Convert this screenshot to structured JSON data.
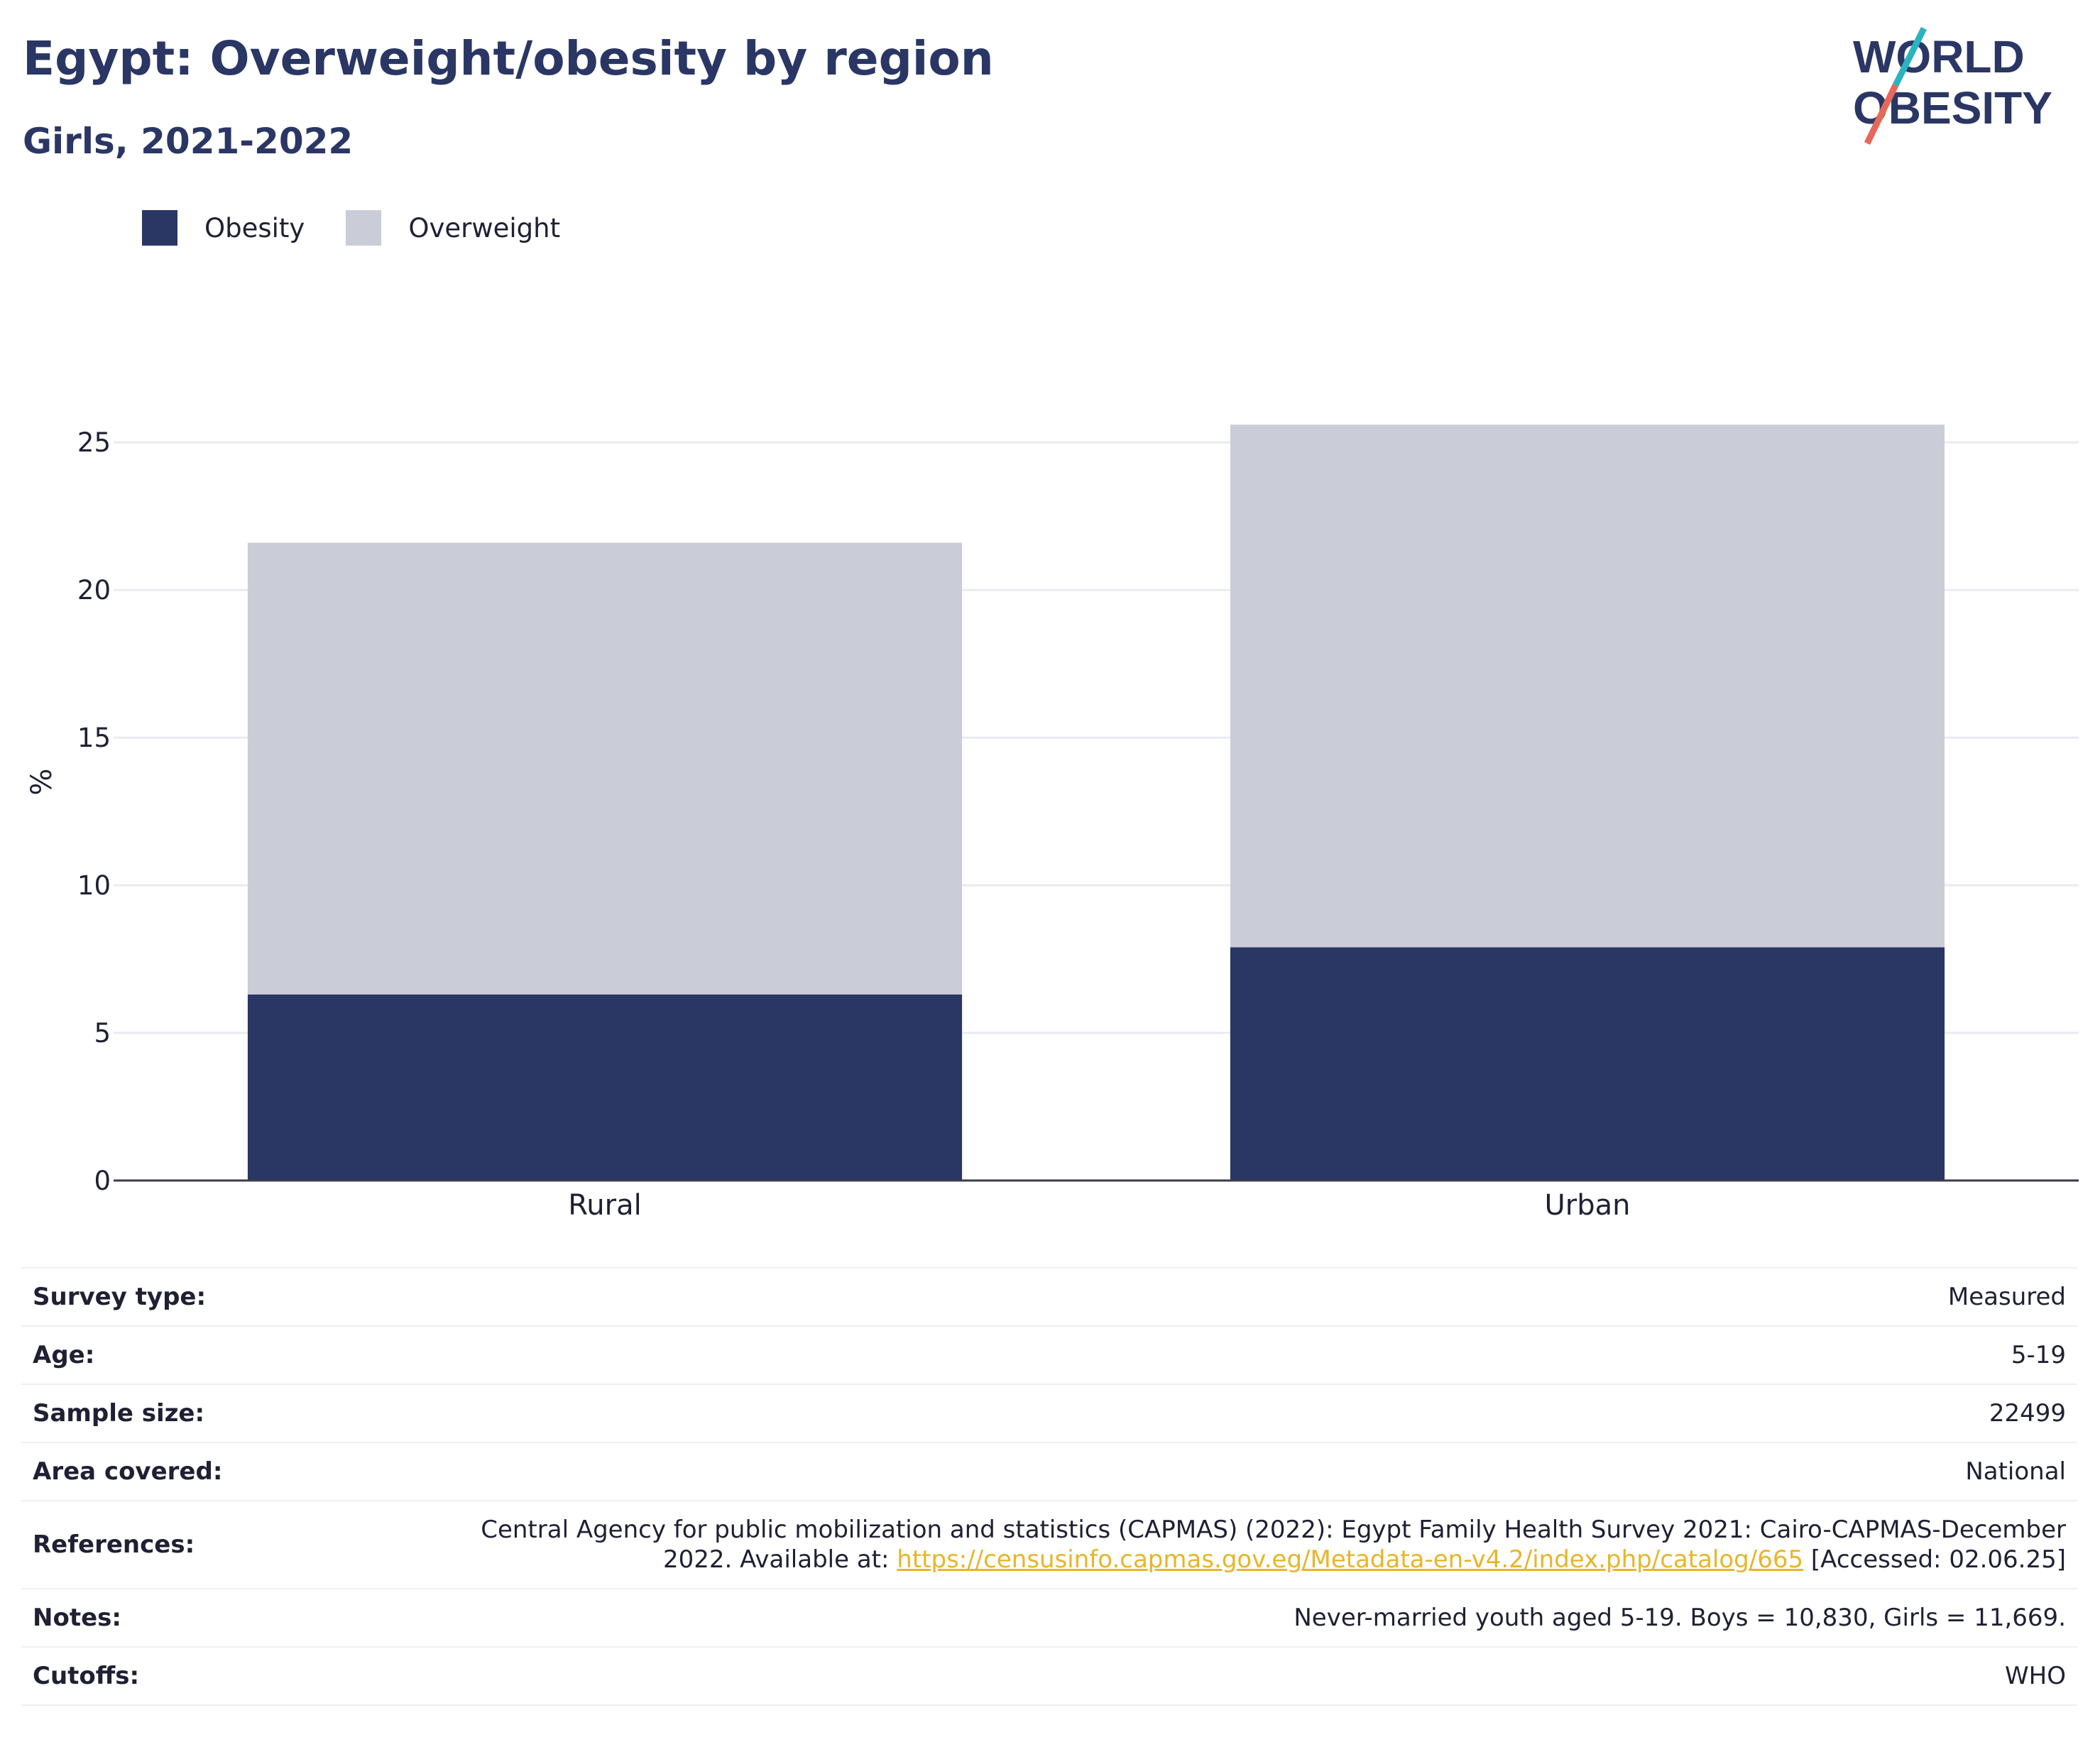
{
  "header": {
    "title": "Egypt: Overweight/obesity by region",
    "subtitle": "Girls, 2021-2022",
    "logo_line1": "WORLD",
    "logo_line2": "OBESITY"
  },
  "colors": {
    "obesity": "#2a3664",
    "overweight": "#cacdd8",
    "title": "#2a3664",
    "logo_slash_teal": "#2bb3bf",
    "logo_slash_red": "#e5695a",
    "link": "#e8b52a"
  },
  "legend": [
    {
      "label": "Obesity",
      "color": "#2a3664"
    },
    {
      "label": "Overweight",
      "color": "#cacdd8"
    }
  ],
  "chart_data": {
    "type": "bar",
    "stacked": true,
    "categories": [
      "Rural",
      "Urban"
    ],
    "series": [
      {
        "name": "Obesity",
        "values": [
          6.3,
          7.9
        ]
      },
      {
        "name": "Overweight",
        "values": [
          15.3,
          17.7
        ]
      }
    ],
    "ylabel": "%",
    "xlabel": "",
    "ylim": [
      0,
      27
    ],
    "yticks": [
      0,
      5,
      10,
      15,
      20,
      25
    ],
    "grid": true,
    "legend_position": "top-left"
  },
  "info": {
    "survey_type": {
      "label": "Survey type:",
      "value": "Measured"
    },
    "age": {
      "label": "Age:",
      "value": "5-19"
    },
    "sample_size": {
      "label": "Sample size:",
      "value": "22499"
    },
    "area": {
      "label": "Area covered:",
      "value": "National"
    },
    "references": {
      "label": "References:",
      "line1": "Central Agency for public mobilization and statistics (CAPMAS) (2022): Egypt Family Health Survey 2021: Cairo-CAPMAS-December",
      "line2_pre": "2022. Available at: ",
      "link": "https://censusinfo.capmas.gov.eg/Metadata-en-v4.2/index.php/catalog/665",
      "line2_post": " [Accessed: 02.06.25]"
    },
    "notes": {
      "label": "Notes:",
      "value": "Never-married youth aged 5-19. Boys = 10,830, Girls = 11,669."
    },
    "cutoffs": {
      "label": "Cutoffs:",
      "value": "WHO"
    }
  }
}
